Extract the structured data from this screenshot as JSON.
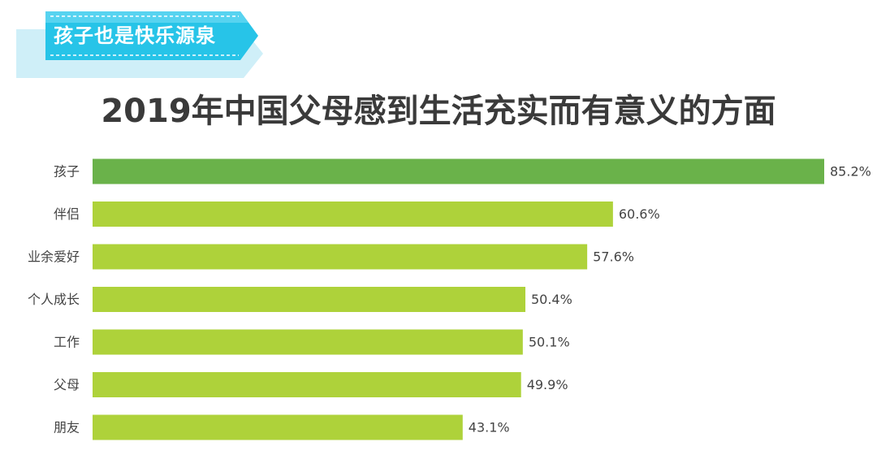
{
  "banner": {
    "text": "孩子也是快乐源泉"
  },
  "colors": {
    "banner_fill": "#27c4e8",
    "banner_fill_light": "#7fe0f5",
    "banner_shadow": "#cfeff8",
    "highlight_bar": "#6ab24a",
    "bar": "#aed23a",
    "label_text": "#444444",
    "title_text": "#3a3a3a"
  },
  "chart_data": {
    "type": "bar",
    "orientation": "horizontal",
    "title": "2019年中国父母感到生活充实而有意义的方面",
    "categories": [
      "孩子",
      "伴侣",
      "业余爱好",
      "个人成长",
      "工作",
      "父母",
      "朋友"
    ],
    "values": [
      85.2,
      60.6,
      57.6,
      50.4,
      50.1,
      49.9,
      43.1
    ],
    "value_labels": [
      "85.2%",
      "60.6%",
      "57.6%",
      "50.4%",
      "50.1%",
      "49.9%",
      "43.1%"
    ],
    "unit": "%",
    "highlight_index": 0,
    "xlim": [
      0,
      100
    ],
    "grid": false,
    "legend": "none"
  }
}
